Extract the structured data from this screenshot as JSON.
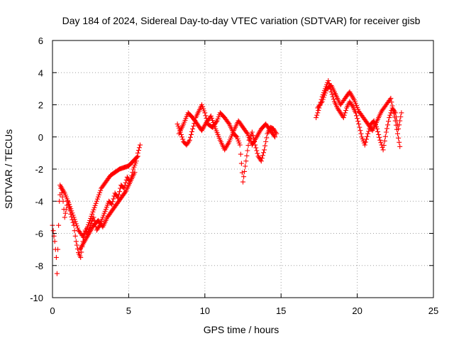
{
  "chart_data": {
    "type": "scatter",
    "title": "Day 184 of 2024, Sidereal Day-to-day VTEC variation (SDTVAR) for receiver gisb",
    "xlabel": "GPS time / hours",
    "ylabel": "SDTVAR / TECUs",
    "xlim": [
      0,
      25
    ],
    "ylim": [
      -10,
      6
    ],
    "xticks": [
      "0",
      "5",
      "10",
      "15",
      "20",
      "25"
    ],
    "yticks": [
      "-10",
      "-8",
      "-6",
      "-4",
      "-2",
      "0",
      "2",
      "4",
      "6"
    ],
    "grid": true,
    "marker": "plus",
    "color": "#ff0000",
    "series": [
      {
        "name": "SDTVAR",
        "segments": [
          {
            "x": [
              0.0,
              0.15,
              0.25,
              0.3,
              0.35,
              0.45,
              0.55,
              0.7,
              0.8,
              0.9,
              1.0,
              1.2,
              1.4,
              1.55,
              1.7,
              1.85,
              2.0,
              2.15,
              2.3,
              2.5,
              2.7,
              2.9,
              3.1,
              3.3,
              3.5,
              3.7,
              3.9,
              4.1,
              4.3,
              4.5,
              4.7,
              4.9,
              5.1,
              5.3,
              5.5,
              5.6,
              5.75
            ],
            "y": [
              -5.5,
              -6.5,
              -7.5,
              -8.5,
              -7.0,
              -4.0,
              -3.2,
              -4.0,
              -5.0,
              -4.5,
              -4.0,
              -4.8,
              -5.5,
              -6.5,
              -7.2,
              -7.5,
              -6.5,
              -5.8,
              -6.0,
              -5.5,
              -5.0,
              -5.8,
              -5.5,
              -5.0,
              -4.5,
              -4.0,
              -4.2,
              -3.5,
              -3.8,
              -3.0,
              -3.2,
              -2.5,
              -2.8,
              -2.0,
              -1.5,
              -1.0,
              -0.5
            ]
          },
          {
            "x": [
              0.5,
              0.8,
              1.1,
              1.4,
              1.7,
              2.0,
              2.3,
              2.6,
              2.9,
              3.2,
              3.5,
              3.8,
              4.1,
              4.4,
              4.7,
              5.0,
              5.3,
              5.6
            ],
            "y": [
              -3.0,
              -3.5,
              -4.2,
              -5.0,
              -5.8,
              -6.2,
              -5.6,
              -4.8,
              -4.0,
              -3.2,
              -2.8,
              -2.4,
              -2.2,
              -2.0,
              -1.9,
              -1.8,
              -1.5,
              -1.2
            ]
          },
          {
            "x": [
              1.8,
              2.1,
              2.4,
              2.7,
              3.0,
              3.3,
              3.6,
              3.9,
              4.2,
              4.5,
              4.8,
              5.1,
              5.4
            ],
            "y": [
              -7.0,
              -6.5,
              -6.0,
              -5.5,
              -5.2,
              -5.6,
              -5.0,
              -4.6,
              -4.2,
              -3.8,
              -3.4,
              -2.8,
              -2.2
            ]
          },
          {
            "x": [
              8.2,
              8.4,
              8.6,
              8.8,
              9.0,
              9.2,
              9.4,
              9.6,
              9.8,
              10.0,
              10.2,
              10.5,
              10.8,
              11.0,
              11.3,
              11.6,
              11.9,
              12.1,
              12.3,
              12.5,
              12.7,
              12.9,
              13.1,
              13.3,
              13.5,
              13.7,
              13.9,
              14.1,
              14.3,
              14.5,
              14.7
            ],
            "y": [
              0.8,
              0.3,
              -0.3,
              -0.5,
              -0.2,
              0.5,
              1.2,
              1.6,
              2.0,
              1.5,
              0.8,
              0.6,
              1.0,
              1.5,
              1.2,
              0.8,
              0.2,
              0.0,
              -0.5,
              -2.8,
              -1.5,
              -0.2,
              0.3,
              -0.5,
              -1.2,
              -1.5,
              -0.8,
              0.2,
              0.6,
              0.5,
              0.2
            ]
          },
          {
            "x": [
              8.3,
              8.6,
              8.9,
              9.2,
              9.5,
              9.8,
              10.1,
              10.4,
              10.7,
              11.0,
              11.3,
              11.6,
              11.9,
              12.2,
              12.5,
              12.8,
              13.1,
              13.4,
              13.7,
              14.0,
              14.3,
              14.6
            ],
            "y": [
              0.2,
              0.8,
              1.5,
              1.2,
              0.8,
              0.4,
              0.9,
              1.3,
              0.5,
              -0.2,
              -0.8,
              -0.3,
              0.4,
              1.0,
              0.6,
              0.2,
              -0.5,
              0.0,
              0.5,
              0.8,
              0.4,
              0.0
            ]
          },
          {
            "x": [
              17.3,
              17.5,
              17.7,
              17.9,
              18.1,
              18.3,
              18.5,
              18.7,
              18.9,
              19.1,
              19.3,
              19.5,
              19.7,
              19.9,
              20.1,
              20.3,
              20.5,
              20.7,
              20.9,
              21.1,
              21.3,
              21.5,
              21.7,
              21.9,
              22.1,
              22.3,
              22.5,
              22.7,
              22.9
            ],
            "y": [
              1.2,
              1.8,
              2.5,
              3.0,
              3.5,
              2.8,
              2.2,
              1.8,
              1.5,
              1.2,
              1.8,
              2.2,
              1.9,
              1.5,
              0.8,
              0.0,
              -0.5,
              0.2,
              0.8,
              1.0,
              0.5,
              -0.2,
              -0.8,
              0.3,
              1.2,
              1.8,
              1.5,
              0.5,
              1.5
            ]
          },
          {
            "x": [
              17.4,
              17.7,
              18.0,
              18.3,
              18.6,
              18.9,
              19.2,
              19.5,
              19.8,
              20.1,
              20.4,
              20.7,
              21.0,
              21.3,
              21.6,
              21.9,
              22.2,
              22.5,
              22.8
            ],
            "y": [
              1.8,
              2.2,
              3.0,
              3.2,
              2.6,
              2.0,
              2.4,
              2.8,
              2.3,
              1.6,
              1.2,
              0.8,
              0.4,
              1.0,
              1.6,
              2.0,
              2.4,
              1.0,
              -0.6
            ]
          }
        ]
      }
    ]
  }
}
